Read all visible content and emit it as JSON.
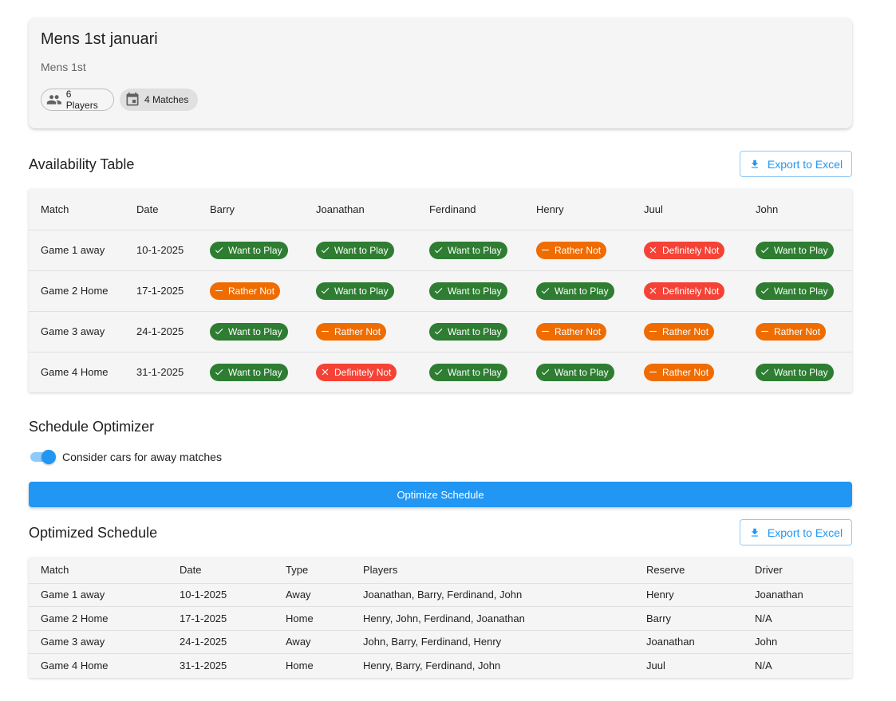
{
  "team": {
    "title": "Mens 1st januari",
    "subtitle": "Mens 1st",
    "players_chip": "6 Players",
    "matches_chip": "4 Matches"
  },
  "availability": {
    "title": "Availability Table",
    "export_label": "Export to Excel",
    "headers": [
      "Match",
      "Date",
      "Barry",
      "Joanathan",
      "Ferdinand",
      "Henry",
      "Juul",
      "John"
    ],
    "rows": [
      {
        "match": "Game 1 away",
        "date": "10-1-2025",
        "statuses": [
          "want",
          "want",
          "want",
          "rather",
          "def",
          "want"
        ]
      },
      {
        "match": "Game 2 Home",
        "date": "17-1-2025",
        "statuses": [
          "rather",
          "want",
          "want",
          "want",
          "def",
          "want"
        ]
      },
      {
        "match": "Game 3 away",
        "date": "24-1-2025",
        "statuses": [
          "want",
          "rather",
          "want",
          "rather",
          "rather",
          "rather"
        ]
      },
      {
        "match": "Game 4 Home",
        "date": "31-1-2025",
        "statuses": [
          "want",
          "def",
          "want",
          "want",
          "rather",
          "want"
        ]
      }
    ],
    "status_labels": {
      "want": "Want to Play",
      "rather": "Rather Not",
      "def": "Definitely Not"
    },
    "status_colors": {
      "want": "#2e7d32",
      "rather": "#ef6c00",
      "def": "#f44336"
    }
  },
  "optimizer": {
    "title": "Schedule Optimizer",
    "toggle_label": "Consider cars for away matches",
    "toggle_on": true,
    "button_label": "Optimize Schedule"
  },
  "schedule": {
    "title": "Optimized Schedule",
    "export_label": "Export to Excel",
    "headers": [
      "Match",
      "Date",
      "Type",
      "Players",
      "Reserve",
      "Driver"
    ],
    "rows": [
      [
        "Game 1 away",
        "10-1-2025",
        "Away",
        "Joanathan, Barry, Ferdinand, John",
        "Henry",
        "Joanathan"
      ],
      [
        "Game 2 Home",
        "17-1-2025",
        "Home",
        "Henry, John, Ferdinand, Joanathan",
        "Barry",
        "N/A"
      ],
      [
        "Game 3 away",
        "24-1-2025",
        "Away",
        "John, Barry, Ferdinand, Henry",
        "Joanathan",
        "John"
      ],
      [
        "Game 4 Home",
        "31-1-2025",
        "Home",
        "Henry, Barry, Ferdinand, John",
        "Juul",
        "N/A"
      ]
    ]
  },
  "colors": {
    "accent": "#2196f3",
    "card_bg": "#f5f5f5"
  }
}
